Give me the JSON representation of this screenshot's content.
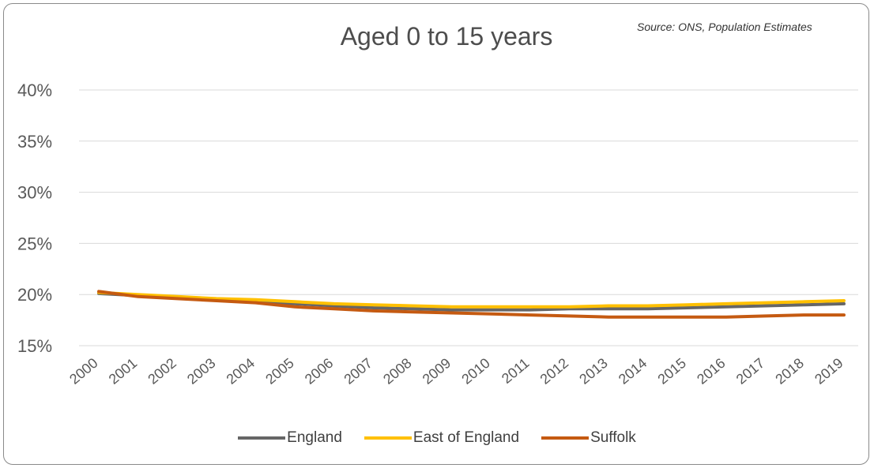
{
  "source": "Source: ONS, Population Estimates",
  "chart_data": {
    "type": "line",
    "title": "Aged 0 to 15 years",
    "xlabel": "",
    "ylabel": "",
    "categories": [
      "2000",
      "2001",
      "2002",
      "2003",
      "2004",
      "2005",
      "2006",
      "2007",
      "2008",
      "2009",
      "2010",
      "2011",
      "2012",
      "2013",
      "2014",
      "2015",
      "2016",
      "2017",
      "2018",
      "2019"
    ],
    "y_ticks": [
      "15%",
      "20%",
      "25%",
      "30%",
      "35%",
      "40%"
    ],
    "ylim": [
      15,
      40
    ],
    "grid": true,
    "legend_position": "bottom",
    "series": [
      {
        "name": "England",
        "color": "#666666",
        "values": [
          20.1,
          19.9,
          19.7,
          19.5,
          19.3,
          19.1,
          18.9,
          18.7,
          18.6,
          18.5,
          18.5,
          18.5,
          18.6,
          18.6,
          18.6,
          18.7,
          18.8,
          18.9,
          19.0,
          19.1
        ]
      },
      {
        "name": "East of England",
        "color": "#FFC000",
        "values": [
          20.2,
          20.0,
          19.8,
          19.6,
          19.5,
          19.3,
          19.1,
          19.0,
          18.9,
          18.8,
          18.8,
          18.8,
          18.8,
          18.9,
          18.9,
          19.0,
          19.1,
          19.2,
          19.3,
          19.4
        ]
      },
      {
        "name": "Suffolk",
        "color": "#C55A11",
        "values": [
          20.3,
          19.8,
          19.6,
          19.4,
          19.2,
          18.8,
          18.6,
          18.4,
          18.3,
          18.2,
          18.1,
          18.0,
          17.9,
          17.8,
          17.8,
          17.8,
          17.8,
          17.9,
          18.0,
          18.0
        ]
      }
    ]
  }
}
